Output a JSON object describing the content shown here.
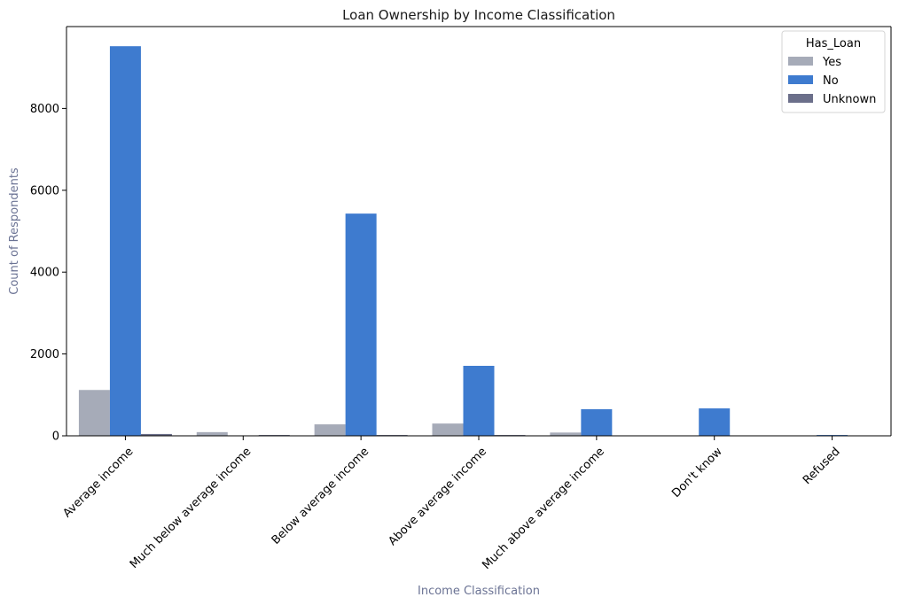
{
  "chart_data": {
    "type": "bar",
    "title": "Loan Ownership by Income Classification",
    "xlabel": "Income Classification",
    "ylabel": "Count of Respondents",
    "categories": [
      "Average income",
      "Much below average income",
      "Below average income",
      "Above average income",
      "Much above average income",
      "Don't know",
      "Refused"
    ],
    "series": [
      {
        "name": "Yes",
        "color": "#a6abb8",
        "values": [
          1120,
          90,
          280,
          300,
          80,
          10,
          0
        ]
      },
      {
        "name": "No",
        "color": "#3e7bcf",
        "values": [
          9520,
          0,
          5430,
          1710,
          650,
          670,
          20
        ]
      },
      {
        "name": "Unknown",
        "color": "#6b6f8a",
        "values": [
          45,
          20,
          20,
          20,
          0,
          0,
          0
        ]
      }
    ],
    "yticks": [
      0,
      2000,
      4000,
      6000,
      8000
    ],
    "ylim": [
      0,
      10000
    ],
    "legend": {
      "title": "Has_Loan",
      "position": "top-right"
    },
    "grid": false
  }
}
